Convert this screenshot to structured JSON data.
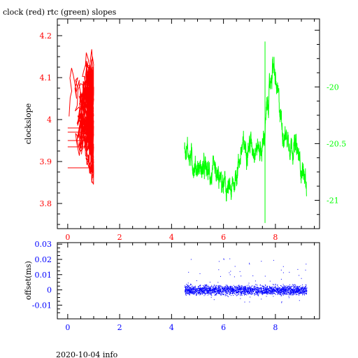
{
  "title": "clock (red) rtc (green) slopes",
  "footer": "2020-10-04 info",
  "colors": {
    "clock": "#ff0000",
    "rtc": "#00ff00",
    "offset": "#0000ff",
    "axis": "#000000"
  },
  "chart_data": [
    {
      "type": "line",
      "title": "clock (red) rtc (green) slopes",
      "ylabel": "clockslope",
      "xlim": [
        -0.4,
        9.7
      ],
      "ylim": [
        3.74,
        4.24
      ],
      "right_ylim": [
        -21.25,
        -19.4
      ],
      "x_ticks": [
        "0",
        "2",
        "4",
        "6",
        "8"
      ],
      "y_ticks": [
        "3.8",
        "3.9",
        "4",
        "4.1",
        "4.2"
      ],
      "right_y_ticks": [
        "-20",
        "-20.5",
        "-21"
      ],
      "series": [
        {
          "name": "clock",
          "color": "#ff0000",
          "axis": "left",
          "x_range": [
            0.0,
            1.0
          ],
          "y_range": [
            3.76,
            4.21
          ]
        },
        {
          "name": "rtc",
          "color": "#00ff00",
          "axis": "right",
          "x_range": [
            4.5,
            9.2
          ],
          "y_range": [
            -21.2,
            -19.5
          ]
        }
      ],
      "grid": false
    },
    {
      "type": "scatter",
      "ylabel": "offset(ms)",
      "xlim": [
        -0.4,
        9.7
      ],
      "ylim": [
        -0.019,
        0.031
      ],
      "x_ticks": [
        "0",
        "2",
        "4",
        "6",
        "8"
      ],
      "y_ticks": [
        "-0.01",
        "0",
        "0.01",
        "0.02",
        "0.03"
      ],
      "series": [
        {
          "name": "offset",
          "color": "#0000ff",
          "x_range": [
            4.5,
            9.2
          ],
          "y_range": [
            -0.012,
            0.03
          ]
        }
      ],
      "grid": false
    }
  ]
}
